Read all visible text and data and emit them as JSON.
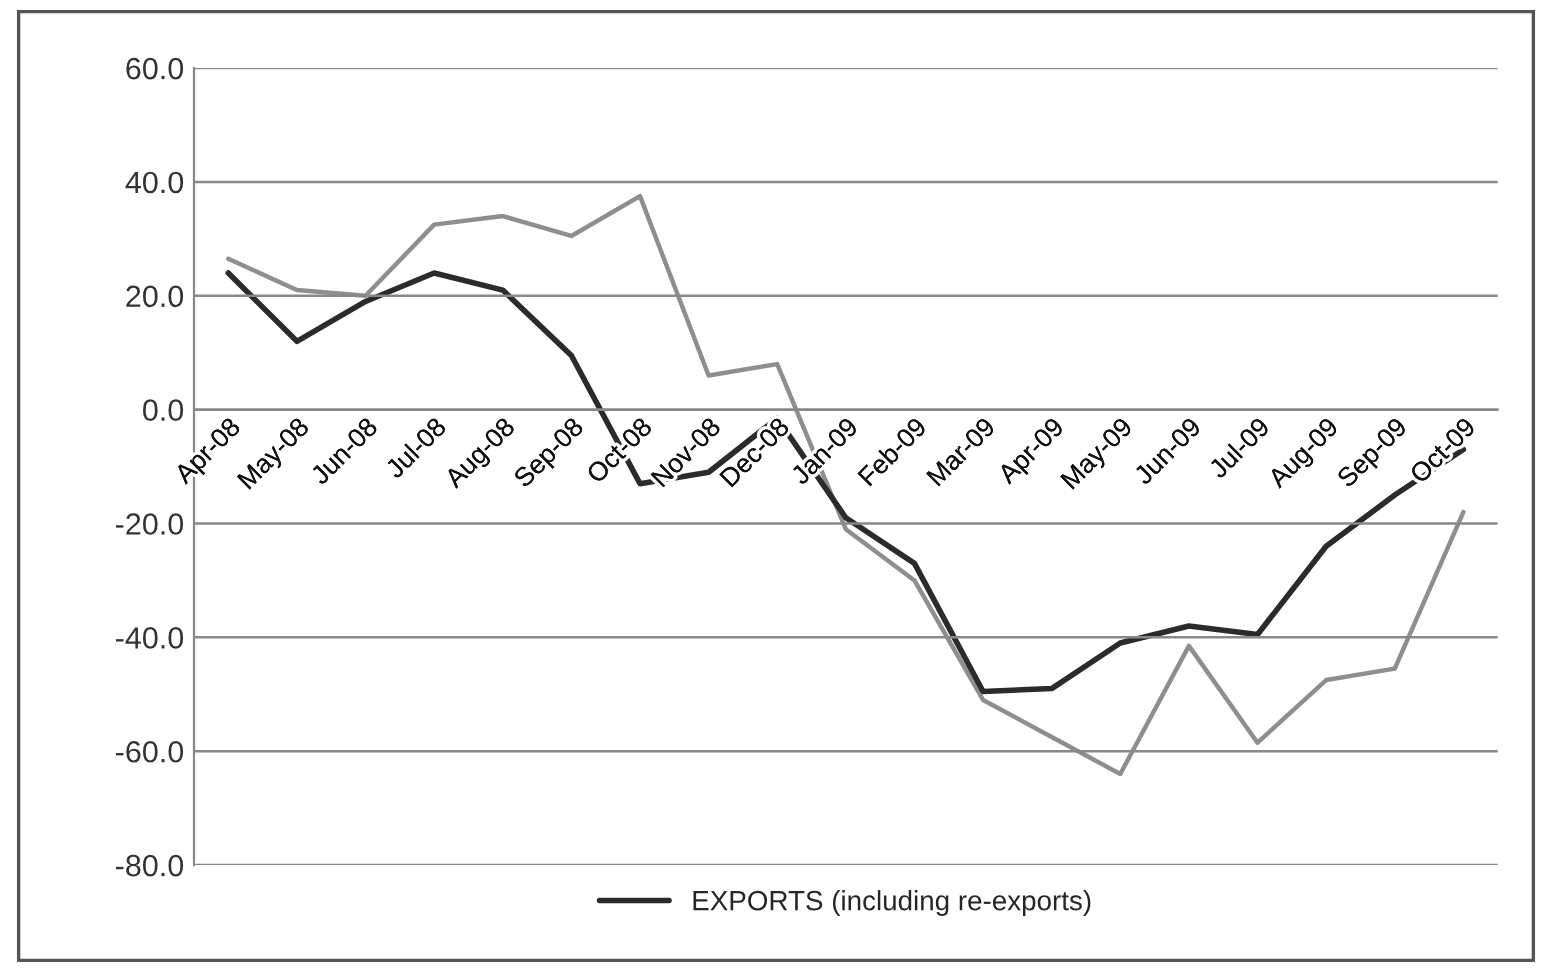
{
  "chart_data": {
    "type": "line",
    "categories": [
      "Apr-08",
      "May-08",
      "Jun-08",
      "Jul-08",
      "Aug-08",
      "Sep-08",
      "Oct-08",
      "Nov-08",
      "Dec-08",
      "Jan-09",
      "Feb-09",
      "Mar-09",
      "Apr-09",
      "May-09",
      "Jun-09",
      "Jul-09",
      "Aug-09",
      "Sep-09",
      "Oct-09"
    ],
    "series": [
      {
        "color": "#8e8e8e",
        "values": [
          26.5,
          21,
          20,
          32.5,
          34,
          30.5,
          37.5,
          6,
          8,
          -21,
          -30,
          -51,
          -57.5,
          -64,
          -41.5,
          -58.5,
          -47.5,
          -45.5,
          -18
        ]
      },
      {
        "name": "EXPORTS (including re-exports)",
        "color": "#2b2b2b",
        "values": [
          24,
          12,
          19,
          24,
          21,
          9.5,
          -13,
          -11,
          -1.5,
          -19,
          -27,
          -49.5,
          -49,
          -41,
          -38,
          -39.5,
          -24,
          -15,
          -7
        ]
      }
    ],
    "ylim": [
      -80,
      60
    ],
    "yticks": [
      {
        "value": -80,
        "label": "-80.0"
      },
      {
        "value": -60,
        "label": "-60.0"
      },
      {
        "value": -40,
        "label": "-40.0"
      },
      {
        "value": -20,
        "label": "-20.0"
      },
      {
        "value": 0,
        "label": "0.0"
      },
      {
        "value": 20,
        "label": "20.0"
      },
      {
        "value": 40,
        "label": "40.0"
      },
      {
        "value": 60,
        "label": "60.0"
      }
    ],
    "grid": "y",
    "legend": "bottom",
    "marker": "none",
    "line_style": "solid"
  }
}
